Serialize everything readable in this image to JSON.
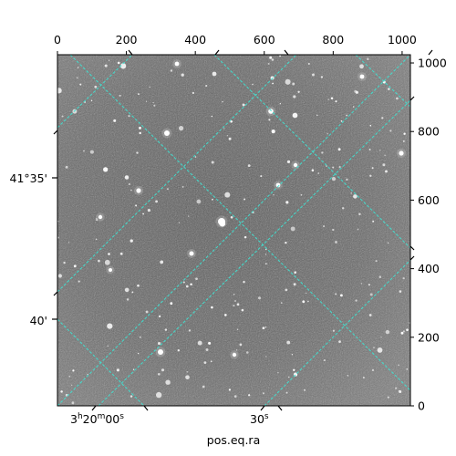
{
  "chart_data": {
    "type": "image",
    "title": "",
    "colormap": "grayscale",
    "grid_color": "#40e0d0",
    "xlabel": "pos.eq.ra",
    "ylabel": "",
    "top_axis": {
      "ticks": [
        "0",
        "200",
        "400",
        "600",
        "800",
        "1000"
      ],
      "range": [
        0,
        1024
      ]
    },
    "right_axis": {
      "ticks": [
        "0",
        "200",
        "400",
        "600",
        "800",
        "1000"
      ],
      "range": [
        0,
        1024
      ]
    },
    "bottom_axis": {
      "labels": [
        {
          "h": "3",
          "m": "20",
          "s": "00",
          "text": "3h20m00s"
        },
        {
          "s": "30",
          "text": "30s"
        }
      ]
    },
    "left_axis": {
      "labels": [
        "41°35'",
        "40'"
      ]
    },
    "grid": true
  }
}
